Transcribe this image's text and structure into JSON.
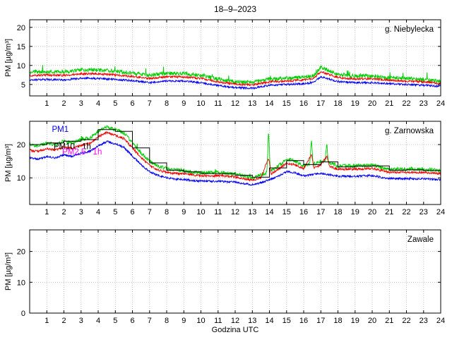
{
  "chart_data": {
    "type": "line",
    "title": "18–9–2023",
    "xlabel": "Godzina UTC",
    "ylabel": "PM [µg/m³]",
    "x_range": [
      0,
      24
    ],
    "x_ticks": [
      1,
      2,
      3,
      4,
      5,
      6,
      7,
      8,
      9,
      10,
      11,
      12,
      13,
      14,
      15,
      16,
      17,
      18,
      19,
      20,
      21,
      22,
      23,
      24
    ],
    "grid": true,
    "legend_style": "inline-colored-text",
    "panels": [
      {
        "label": "g. Niebylecka",
        "ylim": [
          2,
          22
        ],
        "yticks": [
          5,
          10,
          15,
          20
        ],
        "series": [
          {
            "name": "PM10",
            "color": "#00cc00",
            "noise": 0.5,
            "spike": 1.8,
            "width": 0.9,
            "points": [
              [
                0,
                8.3
              ],
              [
                1,
                8.4
              ],
              [
                2,
                8.3
              ],
              [
                3,
                8.8
              ],
              [
                4,
                8.8
              ],
              [
                5,
                8.5
              ],
              [
                6,
                8.0
              ],
              [
                7,
                7.4
              ],
              [
                8,
                7.9
              ],
              [
                9,
                7.9
              ],
              [
                10,
                7.4
              ],
              [
                11,
                6.4
              ],
              [
                12,
                5.7
              ],
              [
                13,
                5.5
              ],
              [
                14,
                6.4
              ],
              [
                15,
                6.6
              ],
              [
                16,
                6.9
              ],
              [
                16.6,
                7.4
              ],
              [
                17,
                9.5
              ],
              [
                17.4,
                8.8
              ],
              [
                18,
                7.6
              ],
              [
                19,
                7.2
              ],
              [
                20,
                7.2
              ],
              [
                21,
                6.8
              ],
              [
                22,
                6.6
              ],
              [
                23,
                6.3
              ],
              [
                24,
                5.9
              ]
            ]
          },
          {
            "name": "PM2.5",
            "color": "#ee0000",
            "noise": 0.28,
            "width": 0.9,
            "points": [
              [
                0,
                7.4
              ],
              [
                1,
                7.5
              ],
              [
                2,
                7.4
              ],
              [
                3,
                7.8
              ],
              [
                4,
                7.8
              ],
              [
                5,
                7.5
              ],
              [
                6,
                7.1
              ],
              [
                7,
                6.6
              ],
              [
                8,
                7.0
              ],
              [
                9,
                7.0
              ],
              [
                10,
                6.6
              ],
              [
                11,
                5.7
              ],
              [
                12,
                5.1
              ],
              [
                13,
                4.9
              ],
              [
                14,
                5.7
              ],
              [
                15,
                5.9
              ],
              [
                16,
                6.2
              ],
              [
                16.6,
                6.6
              ],
              [
                17,
                8.4
              ],
              [
                17.4,
                7.8
              ],
              [
                18,
                6.8
              ],
              [
                19,
                6.5
              ],
              [
                20,
                6.5
              ],
              [
                21,
                6.1
              ],
              [
                22,
                5.9
              ],
              [
                23,
                5.7
              ],
              [
                24,
                5.3
              ]
            ]
          },
          {
            "name": "PM1",
            "color": "#0000ee",
            "noise": 0.25,
            "width": 0.9,
            "points": [
              [
                0,
                6.2
              ],
              [
                1,
                6.3
              ],
              [
                2,
                6.2
              ],
              [
                3,
                6.6
              ],
              [
                4,
                6.6
              ],
              [
                5,
                6.3
              ],
              [
                6,
                6.0
              ],
              [
                7,
                5.5
              ],
              [
                8,
                5.9
              ],
              [
                9,
                5.9
              ],
              [
                10,
                5.5
              ],
              [
                11,
                4.7
              ],
              [
                12,
                4.2
              ],
              [
                13,
                4.0
              ],
              [
                14,
                4.8
              ],
              [
                15,
                5.0
              ],
              [
                16,
                5.2
              ],
              [
                16.6,
                5.6
              ],
              [
                17,
                7.0
              ],
              [
                17.4,
                6.5
              ],
              [
                18,
                5.8
              ],
              [
                19,
                5.5
              ],
              [
                20,
                5.5
              ],
              [
                21,
                5.2
              ],
              [
                22,
                5.0
              ],
              [
                23,
                4.8
              ],
              [
                24,
                4.5
              ]
            ]
          }
        ],
        "annotations": []
      },
      {
        "label": "g. Zarnowska",
        "ylim": [
          2,
          27
        ],
        "yticks": [
          10,
          20
        ],
        "series": [
          {
            "name": "PM10",
            "color": "#00cc00",
            "noise": 0.55,
            "spike": 1.2,
            "width": 0.9,
            "points": [
              [
                0,
                20
              ],
              [
                0.5,
                19.5
              ],
              [
                1,
                20.5
              ],
              [
                1.5,
                20
              ],
              [
                2,
                21
              ],
              [
                2.5,
                20.5
              ],
              [
                3,
                21.5
              ],
              [
                3.5,
                22
              ],
              [
                4,
                24
              ],
              [
                4.5,
                25.3
              ],
              [
                5,
                24.5
              ],
              [
                5.5,
                23.5
              ],
              [
                6,
                20.5
              ],
              [
                6.5,
                17.5
              ],
              [
                7,
                15
              ],
              [
                7.5,
                13.5
              ],
              [
                8,
                12.8
              ],
              [
                8.5,
                12.3
              ],
              [
                9,
                12.2
              ],
              [
                9.5,
                11.8
              ],
              [
                10,
                11.6
              ],
              [
                11,
                11.6
              ],
              [
                12,
                11.2
              ],
              [
                12.5,
                10.6
              ],
              [
                13,
                10
              ],
              [
                13.5,
                10.8
              ],
              [
                13.85,
                11.5
              ],
              [
                13.95,
                24.5
              ],
              [
                14.05,
                12
              ],
              [
                14.5,
                13.5
              ],
              [
                15,
                15.6
              ],
              [
                15.5,
                15
              ],
              [
                16,
                13.8
              ],
              [
                16.35,
                14
              ],
              [
                16.45,
                21.5
              ],
              [
                16.55,
                14
              ],
              [
                17,
                15
              ],
              [
                17.25,
                14.8
              ],
              [
                17.35,
                20.5
              ],
              [
                17.45,
                14.5
              ],
              [
                18,
                13.6
              ],
              [
                19,
                13.6
              ],
              [
                20,
                13.9
              ],
              [
                20.5,
                13.2
              ],
              [
                21,
                12.6
              ],
              [
                22,
                12.6
              ],
              [
                23,
                12.6
              ],
              [
                24,
                12.1
              ]
            ]
          },
          {
            "name": "PM2.5",
            "color": "#ee0000",
            "noise": 0.35,
            "width": 0.9,
            "points": [
              [
                0,
                18.3
              ],
              [
                0.5,
                17.9
              ],
              [
                1,
                18.8
              ],
              [
                1.5,
                18.3
              ],
              [
                2,
                19.3
              ],
              [
                2.5,
                18.8
              ],
              [
                3,
                19.8
              ],
              [
                3.5,
                20.3
              ],
              [
                4,
                22.3
              ],
              [
                4.5,
                23.6
              ],
              [
                5,
                22.8
              ],
              [
                5.5,
                21.8
              ],
              [
                6,
                19
              ],
              [
                6.5,
                16.2
              ],
              [
                7,
                13.8
              ],
              [
                7.5,
                12.4
              ],
              [
                8,
                11.7
              ],
              [
                8.5,
                11.3
              ],
              [
                9,
                11.2
              ],
              [
                9.5,
                10.9
              ],
              [
                10,
                10.7
              ],
              [
                11,
                10.7
              ],
              [
                12,
                10.3
              ],
              [
                12.5,
                9.8
              ],
              [
                13,
                9.3
              ],
              [
                13.5,
                10
              ],
              [
                13.95,
                16
              ],
              [
                14.1,
                11.2
              ],
              [
                14.5,
                12.5
              ],
              [
                15,
                14.4
              ],
              [
                15.5,
                13.9
              ],
              [
                16,
                12.8
              ],
              [
                16.45,
                17
              ],
              [
                16.6,
                13
              ],
              [
                17,
                13.9
              ],
              [
                17.35,
                16.5
              ],
              [
                17.5,
                13.4
              ],
              [
                18,
                12.6
              ],
              [
                19,
                12.6
              ],
              [
                20,
                12.9
              ],
              [
                20.5,
                12.3
              ],
              [
                21,
                11.7
              ],
              [
                22,
                11.7
              ],
              [
                23,
                11.7
              ],
              [
                24,
                11.3
              ]
            ]
          },
          {
            "name": "PM1",
            "color": "#0000ee",
            "noise": 0.3,
            "width": 0.9,
            "points": [
              [
                0,
                16
              ],
              [
                0.5,
                15.6
              ],
              [
                1,
                16.4
              ],
              [
                1.5,
                16
              ],
              [
                2,
                16.9
              ],
              [
                2.5,
                16.5
              ],
              [
                3,
                17.4
              ],
              [
                3.5,
                17.9
              ],
              [
                4,
                19.6
              ],
              [
                4.5,
                20.9
              ],
              [
                5,
                20.2
              ],
              [
                5.5,
                19.2
              ],
              [
                6,
                16.6
              ],
              [
                6.5,
                14
              ],
              [
                7,
                11.9
              ],
              [
                7.5,
                10.7
              ],
              [
                8,
                10
              ],
              [
                8.5,
                9.6
              ],
              [
                9,
                9.5
              ],
              [
                9.5,
                9.2
              ],
              [
                10,
                9
              ],
              [
                11,
                9
              ],
              [
                12,
                8.7
              ],
              [
                12.5,
                8.3
              ],
              [
                13,
                7.9
              ],
              [
                13.5,
                8.5
              ],
              [
                14,
                9.4
              ],
              [
                14.5,
                10.4
              ],
              [
                15,
                11.9
              ],
              [
                15.5,
                11.5
              ],
              [
                16,
                10.6
              ],
              [
                17,
                11.4
              ],
              [
                18,
                10.5
              ],
              [
                19,
                10.5
              ],
              [
                20,
                10.7
              ],
              [
                20.5,
                10.2
              ],
              [
                21,
                9.8
              ],
              [
                22,
                9.8
              ],
              [
                23,
                9.7
              ],
              [
                24,
                9.4
              ]
            ]
          },
          {
            "name": "PM10 - 1h",
            "color": "#000000",
            "type": "step",
            "values": [
              20,
              20.5,
              21,
              21.5,
              24.5,
              24,
              19,
              14.5,
              12.3,
              11.8,
              11.3,
              11.3,
              10.8,
              10.2,
              13,
              15.2,
              14,
              14.8,
              13.3,
              13.5,
              13.6,
              12.3,
              12.4,
              12.2
            ]
          }
        ],
        "annotations": [
          {
            "text": "PM1",
            "color": "#0000ee",
            "x": 1.3,
            "y": 23.8
          },
          {
            "text": "PM10 - 1h",
            "color": "#000000",
            "x": 1.4,
            "y": 18.6
          },
          {
            "text": "PM2.5 - 1h",
            "color": "#ff00ff",
            "x": 1.9,
            "y": 17.0
          }
        ]
      },
      {
        "label": "Zawale",
        "ylim": [
          0,
          27
        ],
        "yticks": [
          0,
          10,
          20
        ],
        "series": [],
        "annotations": []
      }
    ]
  }
}
